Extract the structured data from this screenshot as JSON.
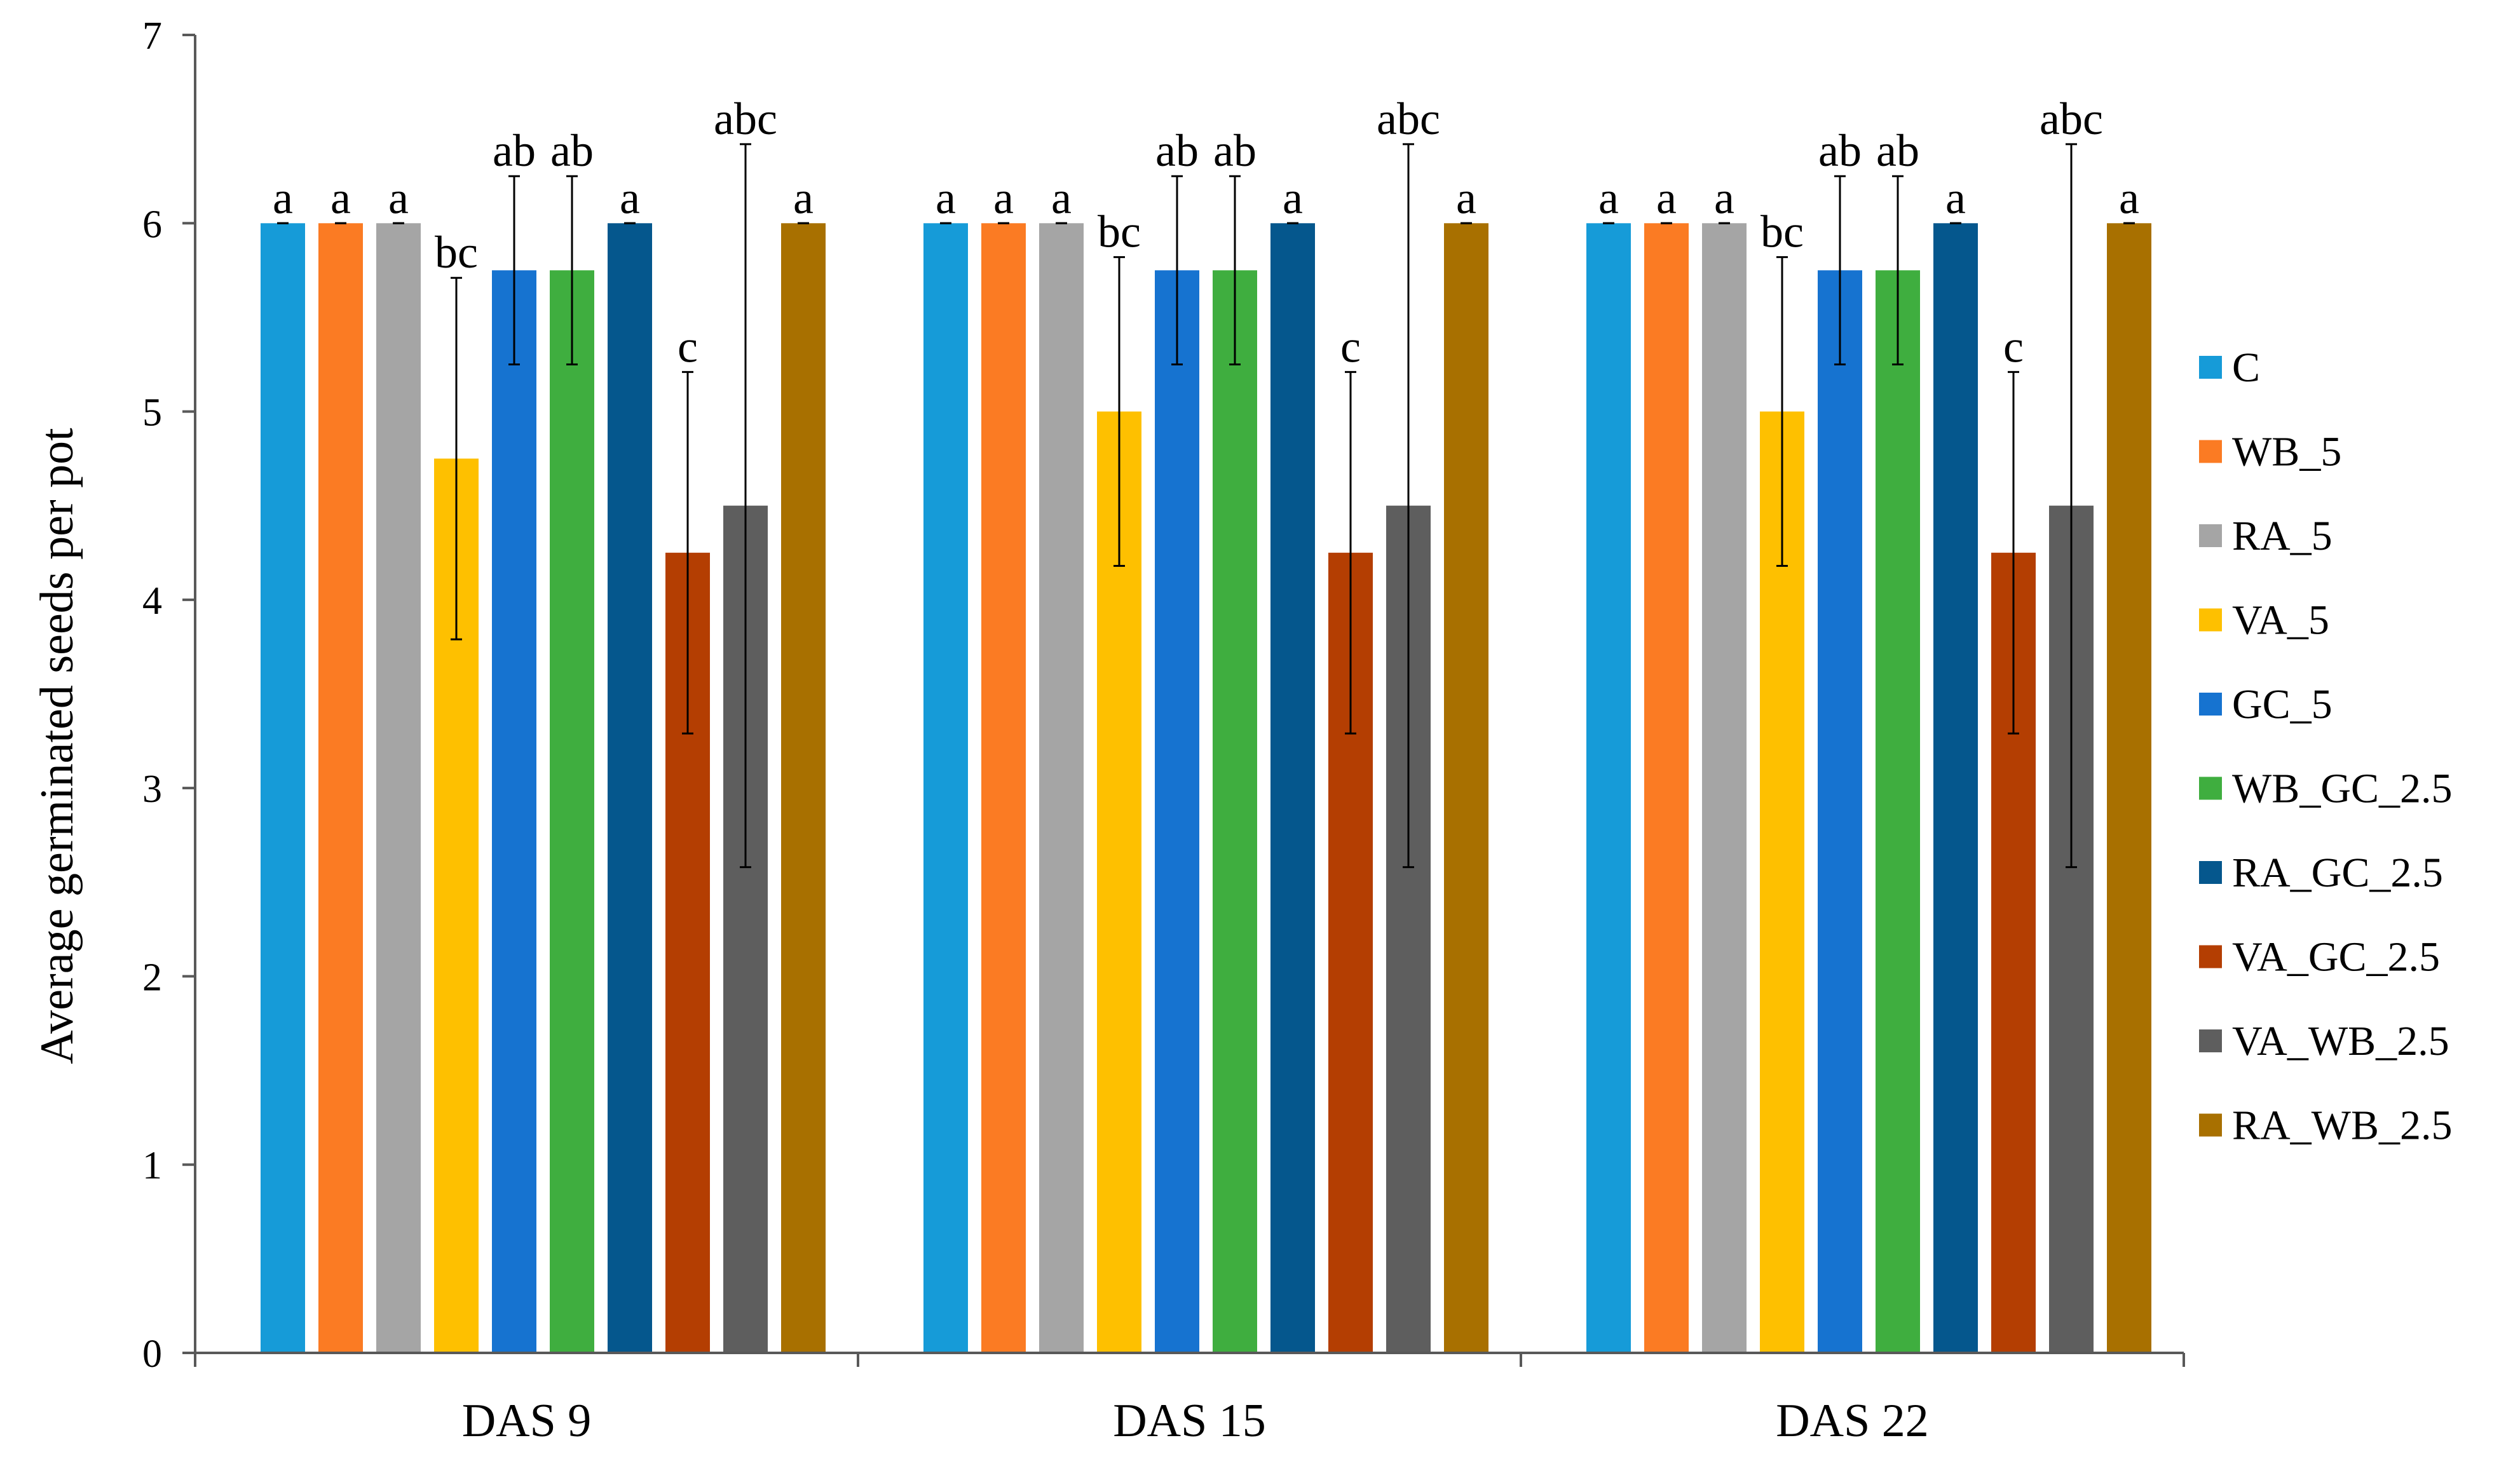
{
  "chart_data": {
    "type": "bar",
    "title": "",
    "xlabel": "",
    "ylabel": "Average germinated seeds per pot",
    "ylim": [
      0,
      7
    ],
    "yticks": [
      "0",
      "1",
      "2",
      "3",
      "4",
      "5",
      "6",
      "7"
    ],
    "categories": [
      "DAS 9",
      "DAS 15",
      "DAS 22"
    ],
    "legend_position": "right",
    "series": [
      {
        "name": "C",
        "color": "#169bd8",
        "values": [
          6,
          6,
          6
        ],
        "errors": [
          0,
          0,
          0
        ],
        "labels": [
          "a",
          "a",
          "a"
        ]
      },
      {
        "name": "WB_5",
        "color": "#fb7b23",
        "values": [
          6,
          6,
          6
        ],
        "errors": [
          0,
          0,
          0
        ],
        "labels": [
          "a",
          "a",
          "a"
        ]
      },
      {
        "name": "RA_5",
        "color": "#a5a5a5",
        "values": [
          6,
          6,
          6
        ],
        "errors": [
          0,
          0,
          0
        ],
        "labels": [
          "a",
          "a",
          "a"
        ]
      },
      {
        "name": "VA_5",
        "color": "#fec000",
        "values": [
          4.75,
          5,
          5
        ],
        "errors": [
          0.96,
          0.82,
          0.82
        ],
        "labels": [
          "bc",
          "bc",
          "bc"
        ]
      },
      {
        "name": "GC_5",
        "color": "#1673d0",
        "values": [
          5.75,
          5.75,
          5.75
        ],
        "errors": [
          0.5,
          0.5,
          0.5
        ],
        "labels": [
          "ab",
          "ab",
          "ab"
        ]
      },
      {
        "name": "WB_GC_2.5",
        "color": "#3fae3f",
        "values": [
          5.75,
          5.75,
          5.75
        ],
        "errors": [
          0.5,
          0.5,
          0.5
        ],
        "labels": [
          "ab",
          "ab",
          "ab"
        ]
      },
      {
        "name": "RA_GC_2.5",
        "color": "#05578d",
        "values": [
          6,
          6,
          6
        ],
        "errors": [
          0,
          0,
          0
        ],
        "labels": [
          "a",
          "a",
          "a"
        ]
      },
      {
        "name": "VA_GC_2.5",
        "color": "#b43e02",
        "values": [
          4.25,
          4.25,
          4.25
        ],
        "errors": [
          0.96,
          0.96,
          0.96
        ],
        "labels": [
          "c",
          "c",
          "c"
        ]
      },
      {
        "name": "VA_WB_2.5",
        "color": "#5e5e5e",
        "values": [
          4.5,
          4.5,
          4.5
        ],
        "errors": [
          1.92,
          1.92,
          1.92
        ],
        "labels": [
          "abc",
          "abc",
          "abc"
        ]
      },
      {
        "name": "RA_WB_2.5",
        "color": "#a87000",
        "values": [
          6,
          6,
          6
        ],
        "errors": [
          0,
          0,
          0
        ],
        "labels": [
          "a",
          "a",
          "a"
        ]
      }
    ]
  }
}
